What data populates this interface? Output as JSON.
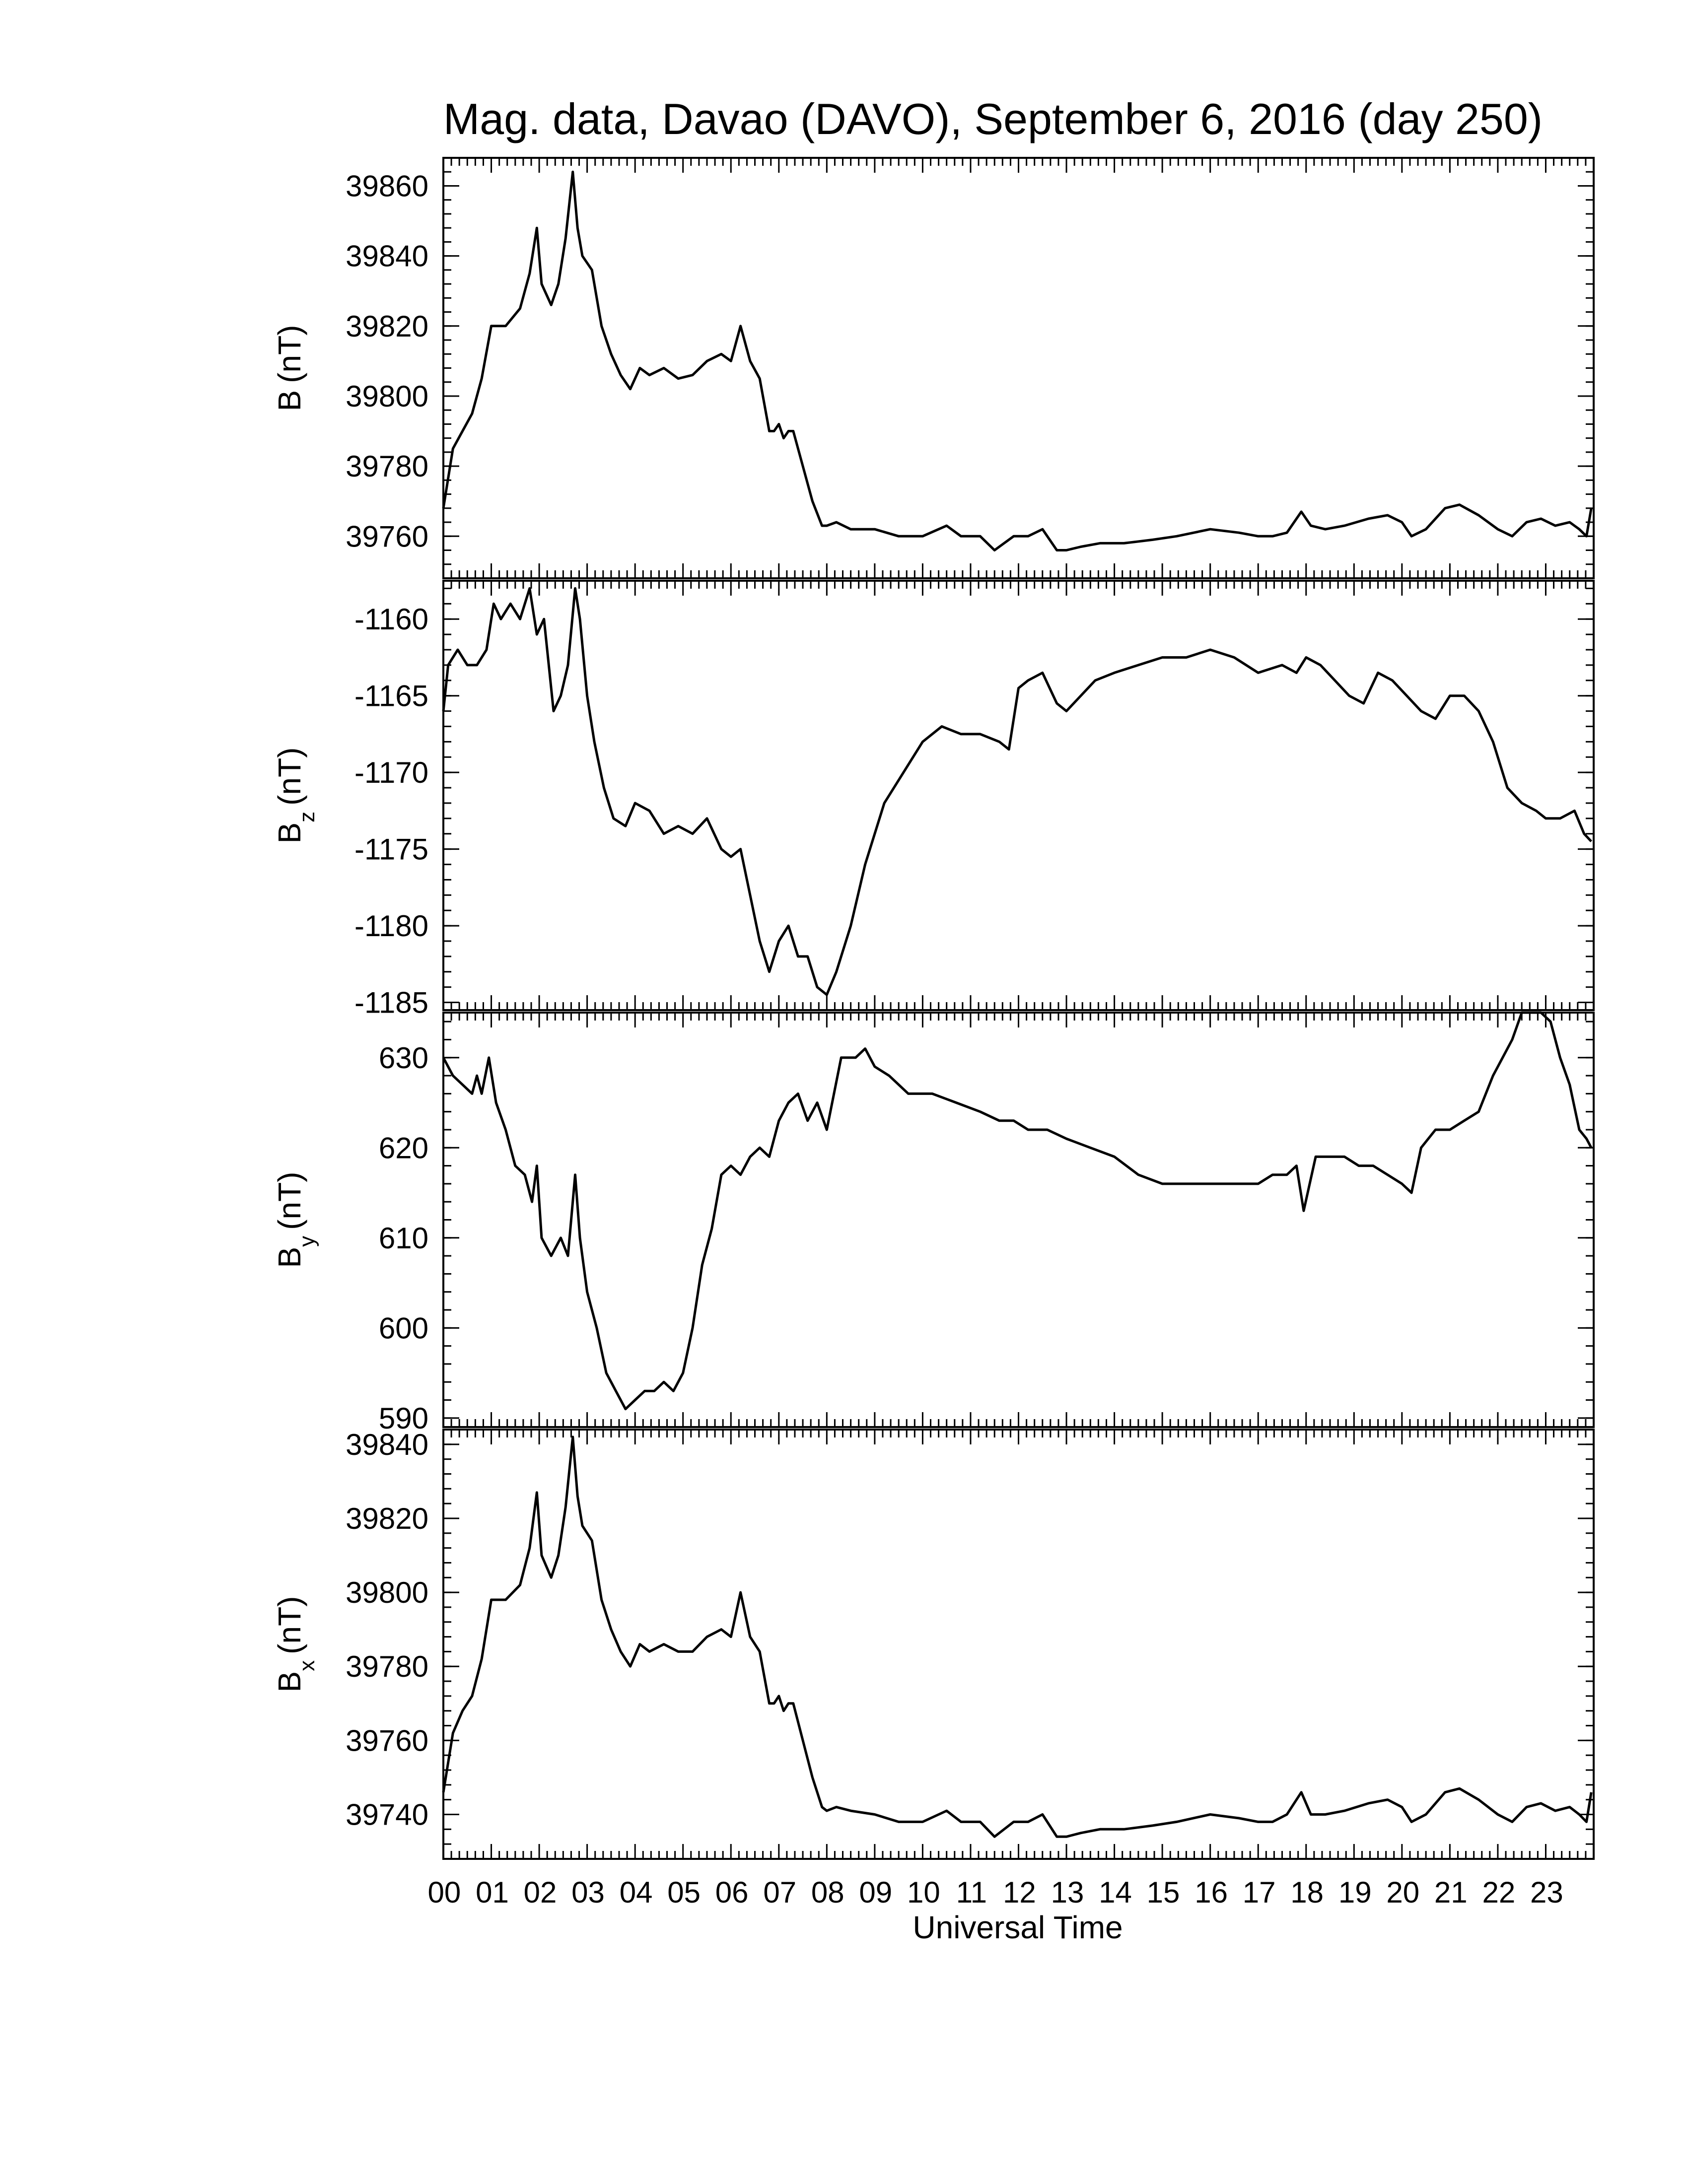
{
  "chart_data": {
    "type": "line",
    "title": "Mag. data, Davao (DAVO), September 6, 2016 (day 250)",
    "xlabel": "Universal Time",
    "x_tick_labels": [
      "00",
      "01",
      "02",
      "03",
      "04",
      "05",
      "06",
      "07",
      "08",
      "09",
      "10",
      "11",
      "12",
      "13",
      "14",
      "15",
      "16",
      "17",
      "18",
      "19",
      "20",
      "21",
      "22",
      "23"
    ],
    "xlim": [
      0,
      24
    ],
    "panels": [
      {
        "id": "B",
        "ylabel_main": "B",
        "ylabel_sub": "",
        "ylabel_unit": "(nT)",
        "ylim": [
          39748,
          39868
        ],
        "yticks": [
          39760,
          39780,
          39800,
          39820,
          39840,
          39860
        ],
        "series": {
          "x": [
            0,
            0.2,
            0.4,
            0.6,
            0.8,
            1.0,
            1.3,
            1.6,
            1.8,
            1.95,
            2.05,
            2.25,
            2.4,
            2.55,
            2.7,
            2.8,
            2.9,
            3.1,
            3.3,
            3.5,
            3.7,
            3.9,
            4.1,
            4.3,
            4.6,
            4.9,
            5.2,
            5.5,
            5.8,
            6.0,
            6.2,
            6.4,
            6.6,
            6.8,
            6.9,
            7.0,
            7.1,
            7.2,
            7.3,
            7.5,
            7.7,
            7.9,
            8.0,
            8.2,
            8.5,
            9,
            9.5,
            10,
            10.5,
            10.8,
            11.2,
            11.5,
            11.7,
            11.9,
            12.2,
            12.5,
            12.8,
            13.0,
            13.3,
            13.7,
            14.2,
            14.8,
            15.3,
            16.0,
            16.6,
            17.0,
            17.3,
            17.6,
            17.9,
            18.1,
            18.4,
            18.8,
            19.3,
            19.7,
            20.0,
            20.2,
            20.5,
            20.9,
            21.2,
            21.6,
            22.0,
            22.3,
            22.6,
            22.9,
            23.2,
            23.5,
            23.7,
            23.85,
            23.95
          ],
          "y": [
            39768,
            39785,
            39790,
            39795,
            39805,
            39820,
            39820,
            39825,
            39835,
            39848,
            39832,
            39826,
            39832,
            39845,
            39864,
            39848,
            39840,
            39836,
            39820,
            39812,
            39806,
            39802,
            39808,
            39806,
            39808,
            39805,
            39806,
            39810,
            39812,
            39810,
            39820,
            39810,
            39805,
            39790,
            39790,
            39792,
            39788,
            39790,
            39790,
            39780,
            39770,
            39763,
            39763,
            39764,
            39762,
            39762,
            39760,
            39760,
            39763,
            39760,
            39760,
            39756,
            39758,
            39760,
            39760,
            39762,
            39756,
            39756,
            39757,
            39758,
            39758,
            39759,
            39760,
            39762,
            39761,
            39760,
            39760,
            39761,
            39767,
            39763,
            39762,
            39763,
            39765,
            39766,
            39764,
            39760,
            39762,
            39768,
            39769,
            39766,
            39762,
            39760,
            39764,
            39765,
            39763,
            39764,
            39762,
            39760,
            39768
          ]
        }
      },
      {
        "id": "Bz",
        "ylabel_main": "B",
        "ylabel_sub": "z",
        "ylabel_unit": "(nT)",
        "ylim": [
          -1185.5,
          -1157.5
        ],
        "yticks": [
          -1160,
          -1165,
          -1170,
          -1175,
          -1180,
          -1185
        ],
        "series": {
          "x": [
            0,
            0.1,
            0.3,
            0.5,
            0.7,
            0.9,
            1.05,
            1.2,
            1.4,
            1.6,
            1.8,
            1.95,
            2.1,
            2.3,
            2.45,
            2.6,
            2.75,
            2.85,
            3.0,
            3.15,
            3.35,
            3.55,
            3.8,
            4.0,
            4.3,
            4.6,
            4.9,
            5.2,
            5.5,
            5.8,
            6.0,
            6.2,
            6.4,
            6.6,
            6.8,
            7.0,
            7.2,
            7.4,
            7.6,
            7.8,
            8.0,
            8.2,
            8.5,
            8.8,
            9.2,
            9.6,
            10.0,
            10.4,
            10.8,
            11.2,
            11.6,
            11.8,
            12.0,
            12.2,
            12.5,
            12.8,
            13.0,
            13.3,
            13.6,
            14.0,
            14.5,
            15.0,
            15.5,
            16.0,
            16.5,
            17.0,
            17.5,
            17.8,
            18.0,
            18.3,
            18.6,
            18.9,
            19.2,
            19.5,
            19.8,
            20.1,
            20.4,
            20.7,
            21.0,
            21.3,
            21.6,
            21.9,
            22.2,
            22.5,
            22.8,
            23.0,
            23.3,
            23.6,
            23.8,
            23.95
          ],
          "y": [
            -1166,
            -1163,
            -1162,
            -1163,
            -1163,
            -1162,
            -1159,
            -1160,
            -1159,
            -1160,
            -1158,
            -1161,
            -1160,
            -1166,
            -1165,
            -1163,
            -1158,
            -1160,
            -1165,
            -1168,
            -1171,
            -1173,
            -1173.5,
            -1172,
            -1172.5,
            -1174,
            -1173.5,
            -1174,
            -1173,
            -1175,
            -1175.5,
            -1175,
            -1178,
            -1181,
            -1183,
            -1181,
            -1180,
            -1182,
            -1182,
            -1184,
            -1184.5,
            -1183,
            -1180,
            -1176,
            -1172,
            -1170,
            -1168,
            -1167,
            -1167.5,
            -1167.5,
            -1168,
            -1168.5,
            -1164.5,
            -1164,
            -1163.5,
            -1165.5,
            -1166,
            -1165,
            -1164,
            -1163.5,
            -1163,
            -1162.5,
            -1162.5,
            -1162,
            -1162.5,
            -1163.5,
            -1163,
            -1163.5,
            -1162.5,
            -1163,
            -1164,
            -1165,
            -1165.5,
            -1163.5,
            -1164,
            -1165,
            -1166,
            -1166.5,
            -1165,
            -1165,
            -1166,
            -1168,
            -1171,
            -1172,
            -1172.5,
            -1173,
            -1173,
            -1172.5,
            -1174,
            -1174.5
          ]
        }
      },
      {
        "id": "By",
        "ylabel_main": "B",
        "ylabel_sub": "y",
        "ylabel_unit": "(nT)",
        "ylim": [
          589,
          635
        ],
        "yticks": [
          590,
          600,
          610,
          620,
          630
        ],
        "series": {
          "x": [
            0,
            0.2,
            0.4,
            0.6,
            0.7,
            0.8,
            0.95,
            1.1,
            1.3,
            1.5,
            1.7,
            1.85,
            1.95,
            2.05,
            2.25,
            2.45,
            2.6,
            2.75,
            2.85,
            3.0,
            3.2,
            3.4,
            3.6,
            3.8,
            4.0,
            4.2,
            4.4,
            4.6,
            4.8,
            5.0,
            5.2,
            5.4,
            5.6,
            5.8,
            6.0,
            6.2,
            6.4,
            6.6,
            6.8,
            7.0,
            7.2,
            7.4,
            7.6,
            7.8,
            8.0,
            8.3,
            8.6,
            8.8,
            9.0,
            9.3,
            9.7,
            10.2,
            10.7,
            11.2,
            11.6,
            11.9,
            12.2,
            12.6,
            13.0,
            13.5,
            14.0,
            14.5,
            15.0,
            15.5,
            16.0,
            16.5,
            17.0,
            17.3,
            17.6,
            17.8,
            17.95,
            18.2,
            18.5,
            18.8,
            19.1,
            19.4,
            19.7,
            20.0,
            20.2,
            20.4,
            20.7,
            21.0,
            21.3,
            21.6,
            21.9,
            22.1,
            22.3,
            22.5,
            22.7,
            22.9,
            23.1,
            23.3,
            23.5,
            23.7,
            23.85,
            23.95
          ],
          "y": [
            630,
            628,
            627,
            626,
            628,
            626,
            630,
            625,
            622,
            618,
            617,
            614,
            618,
            610,
            608,
            610,
            608,
            617,
            610,
            604,
            600,
            595,
            593,
            591,
            592,
            593,
            593,
            594,
            593,
            595,
            600,
            607,
            611,
            617,
            618,
            617,
            619,
            620,
            619,
            623,
            625,
            626,
            623,
            625,
            622,
            630,
            630,
            631,
            629,
            628,
            626,
            626,
            625,
            624,
            623,
            623,
            622,
            622,
            621,
            620,
            619,
            617,
            616,
            616,
            616,
            616,
            616,
            617,
            617,
            618,
            613,
            619,
            619,
            619,
            618,
            618,
            617,
            616,
            615,
            620,
            622,
            622,
            623,
            624,
            628,
            630,
            632,
            635,
            635,
            636,
            634,
            630,
            627,
            622,
            621,
            620
          ]
        }
      },
      {
        "id": "Bx",
        "ylabel_main": "B",
        "ylabel_sub": "x",
        "ylabel_unit": "(nT)",
        "ylim": [
          39728,
          39844
        ],
        "yticks": [
          39740,
          39760,
          39780,
          39800,
          39820,
          39840
        ],
        "series": {
          "x": [
            0,
            0.2,
            0.4,
            0.6,
            0.8,
            1.0,
            1.3,
            1.6,
            1.8,
            1.95,
            2.05,
            2.25,
            2.4,
            2.55,
            2.7,
            2.8,
            2.9,
            3.1,
            3.3,
            3.5,
            3.7,
            3.9,
            4.1,
            4.3,
            4.6,
            4.9,
            5.2,
            5.5,
            5.8,
            6.0,
            6.2,
            6.4,
            6.6,
            6.8,
            6.9,
            7.0,
            7.1,
            7.2,
            7.3,
            7.5,
            7.7,
            7.9,
            8.0,
            8.2,
            8.5,
            9,
            9.5,
            10,
            10.5,
            10.8,
            11.2,
            11.5,
            11.7,
            11.9,
            12.2,
            12.5,
            12.8,
            13.0,
            13.3,
            13.7,
            14.2,
            14.8,
            15.3,
            16.0,
            16.6,
            17.0,
            17.3,
            17.6,
            17.9,
            18.1,
            18.4,
            18.8,
            19.3,
            19.7,
            20.0,
            20.2,
            20.5,
            20.9,
            21.2,
            21.6,
            22.0,
            22.3,
            22.6,
            22.9,
            23.2,
            23.5,
            23.7,
            23.85,
            23.95
          ],
          "y": [
            39746,
            39762,
            39768,
            39772,
            39782,
            39798,
            39798,
            39802,
            39812,
            39827,
            39810,
            39804,
            39810,
            39823,
            39842,
            39826,
            39818,
            39814,
            39798,
            39790,
            39784,
            39780,
            39786,
            39784,
            39786,
            39784,
            39784,
            39788,
            39790,
            39788,
            39800,
            39788,
            39784,
            39770,
            39770,
            39772,
            39768,
            39770,
            39770,
            39760,
            39750,
            39742,
            39741,
            39742,
            39741,
            39740,
            39738,
            39738,
            39741,
            39738,
            39738,
            39734,
            39736,
            39738,
            39738,
            39740,
            39734,
            39734,
            39735,
            39736,
            39736,
            39737,
            39738,
            39740,
            39739,
            39738,
            39738,
            39740,
            39746,
            39740,
            39740,
            39741,
            39743,
            39744,
            39742,
            39738,
            39740,
            39746,
            39747,
            39744,
            39740,
            39738,
            39742,
            39743,
            39741,
            39742,
            39740,
            39738,
            39746
          ]
        }
      }
    ]
  }
}
